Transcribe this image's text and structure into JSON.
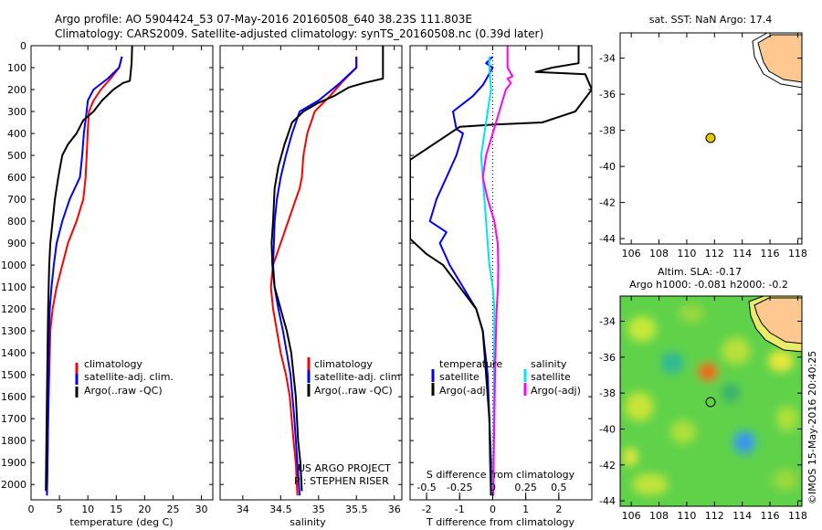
{
  "header": {
    "line1": "Argo profile: AO 5904424_53 07-May-2016 20160508_640 38.23S 111.803E",
    "line2": "Climatology: CARS2009. Satellite-adjusted climatology: synTS_20160508.nc (0.39d later)"
  },
  "watermark": "©IMOS 15-May-2016 20:40:25",
  "colors": {
    "climatology": "#ff0000",
    "satellite": "#0000ff",
    "argo": "#000000",
    "sal_satellite": "#00e5ee",
    "sal_argo": "#ff00ff",
    "land": "#ffc890",
    "float_marker": "#e8c800"
  },
  "chart_data": [
    {
      "type": "line",
      "xlabel": "temperature (deg C)",
      "xlim": [
        0,
        32
      ],
      "xticks": [
        0,
        5,
        10,
        15,
        20,
        25,
        30
      ],
      "ylim": [
        2070,
        0
      ],
      "yticks": [
        0,
        100,
        200,
        300,
        400,
        500,
        600,
        700,
        800,
        900,
        1000,
        1100,
        1200,
        1300,
        1400,
        1500,
        1600,
        1700,
        1800,
        1900,
        2000
      ],
      "legend": [
        "climatology",
        "satellite-adj. clim.",
        "Argo(..raw -QC)"
      ],
      "series": [
        {
          "name": "climatology",
          "color": "#ff0000",
          "points": [
            [
              16,
              50
            ],
            [
              15.5,
              100
            ],
            [
              14,
              150
            ],
            [
              12.3,
              200
            ],
            [
              11,
              250
            ],
            [
              10.2,
              300
            ],
            [
              10,
              380
            ],
            [
              9.8,
              500
            ],
            [
              9.6,
              600
            ],
            [
              9.2,
              700
            ],
            [
              8,
              800
            ],
            [
              6.5,
              900
            ],
            [
              5.5,
              1000
            ],
            [
              4.5,
              1100
            ],
            [
              3.8,
              1200
            ],
            [
              3.4,
              1300
            ],
            [
              3.2,
              1500
            ],
            [
              3,
              1700
            ],
            [
              2.9,
              1900
            ],
            [
              2.8,
              2050
            ]
          ]
        },
        {
          "name": "satellite-adj. clim.",
          "color": "#0000ff",
          "points": [
            [
              16,
              50
            ],
            [
              15.5,
              100
            ],
            [
              13.5,
              150
            ],
            [
              11,
              200
            ],
            [
              10,
              250
            ],
            [
              9.7,
              320
            ],
            [
              9.3,
              400
            ],
            [
              9,
              500
            ],
            [
              8.6,
              600
            ],
            [
              6.8,
              700
            ],
            [
              5.5,
              800
            ],
            [
              4.5,
              900
            ],
            [
              4,
              1000
            ],
            [
              3.6,
              1100
            ],
            [
              3.3,
              1200
            ],
            [
              3.2,
              1300
            ],
            [
              3.1,
              1500
            ],
            [
              3,
              1700
            ],
            [
              2.9,
              1900
            ],
            [
              2.8,
              2050
            ]
          ]
        },
        {
          "name": "Argo(..raw -QC)",
          "color": "#000000",
          "points": [
            [
              17.8,
              0
            ],
            [
              17.7,
              80
            ],
            [
              17.4,
              160
            ],
            [
              16.2,
              170
            ],
            [
              14.5,
              200
            ],
            [
              12.5,
              250
            ],
            [
              11,
              300
            ],
            [
              9.2,
              340
            ],
            [
              8,
              400
            ],
            [
              6.5,
              450
            ],
            [
              5.5,
              500
            ],
            [
              4.8,
              600
            ],
            [
              4.2,
              700
            ],
            [
              3.8,
              800
            ],
            [
              3.4,
              900
            ],
            [
              3.2,
              1000
            ],
            [
              3.1,
              1100
            ],
            [
              3,
              1200
            ],
            [
              2.9,
              1400
            ],
            [
              2.8,
              1600
            ],
            [
              2.7,
              1800
            ],
            [
              2.6,
              2030
            ]
          ]
        }
      ]
    },
    {
      "type": "line",
      "xlabel": "salinity",
      "xlim": [
        33.7,
        36.1
      ],
      "xticks": [
        34,
        34.5,
        35,
        35.5,
        36
      ],
      "ylim": [
        2070,
        0
      ],
      "legend": [
        "climatology",
        "satellite-adj. clim.",
        "Argo(..raw -QC)"
      ],
      "annotations": [
        "US ARGO PROJECT",
        "PI: STEPHEN RISER"
      ],
      "series": [
        {
          "name": "climatology",
          "color": "#ff0000",
          "points": [
            [
              35.5,
              50
            ],
            [
              35.5,
              100
            ],
            [
              35.3,
              170
            ],
            [
              35.15,
              230
            ],
            [
              34.95,
              300
            ],
            [
              34.85,
              400
            ],
            [
              34.8,
              500
            ],
            [
              34.78,
              600
            ],
            [
              34.75,
              650
            ],
            [
              34.7,
              700
            ],
            [
              34.6,
              800
            ],
            [
              34.5,
              900
            ],
            [
              34.4,
              1000
            ],
            [
              34.37,
              1100
            ],
            [
              34.4,
              1200
            ],
            [
              34.45,
              1300
            ],
            [
              34.5,
              1400
            ],
            [
              34.57,
              1500
            ],
            [
              34.62,
              1600
            ],
            [
              34.67,
              1800
            ],
            [
              34.7,
              1900
            ],
            [
              34.72,
              2050
            ]
          ]
        },
        {
          "name": "satellite-adj. clim.",
          "color": "#0000ff",
          "points": [
            [
              35.5,
              50
            ],
            [
              35.5,
              100
            ],
            [
              35.25,
              180
            ],
            [
              35,
              250
            ],
            [
              34.75,
              300
            ],
            [
              34.65,
              400
            ],
            [
              34.57,
              500
            ],
            [
              34.5,
              600
            ],
            [
              34.45,
              700
            ],
            [
              34.42,
              800
            ],
            [
              34.41,
              900
            ],
            [
              34.4,
              1000
            ],
            [
              34.42,
              1100
            ],
            [
              34.47,
              1200
            ],
            [
              34.53,
              1300
            ],
            [
              34.58,
              1400
            ],
            [
              34.63,
              1500
            ],
            [
              34.68,
              1700
            ],
            [
              34.72,
              1900
            ],
            [
              34.75,
              2050
            ]
          ]
        },
        {
          "name": "Argo(..raw -QC)",
          "color": "#000000",
          "points": [
            [
              35.85,
              0
            ],
            [
              35.85,
              150
            ],
            [
              35.6,
              170
            ],
            [
              35.4,
              190
            ],
            [
              35.2,
              230
            ],
            [
              35,
              260
            ],
            [
              34.8,
              300
            ],
            [
              34.65,
              350
            ],
            [
              34.55,
              450
            ],
            [
              34.47,
              550
            ],
            [
              34.42,
              650
            ],
            [
              34.4,
              800
            ],
            [
              34.38,
              900
            ],
            [
              34.39,
              1000
            ],
            [
              34.42,
              1100
            ],
            [
              34.5,
              1200
            ],
            [
              34.58,
              1300
            ],
            [
              34.64,
              1400
            ],
            [
              34.67,
              1500
            ],
            [
              34.7,
              1600
            ],
            [
              34.73,
              1800
            ],
            [
              34.76,
              1900
            ],
            [
              34.78,
              2030
            ]
          ]
        }
      ]
    },
    {
      "type": "line",
      "xlabel": "T difference from climatology",
      "x2label": "S difference from climatology",
      "xlim": [
        -2.5,
        3
      ],
      "xticks": [
        -2,
        -1,
        0,
        1,
        2
      ],
      "x2ticks": [
        -0.5,
        -0.25,
        0,
        0.25,
        0.5
      ],
      "x2tick_labels": [
        "-0.5",
        "-0.25",
        "0",
        "0.25",
        "0.5"
      ],
      "ylim": [
        2070,
        0
      ],
      "legend": [
        "temperature",
        "satellite",
        "Argo(-adj)",
        "salinity",
        "satellite",
        "Argo(-adj)"
      ],
      "series": [
        {
          "name": "satellite",
          "color": "#0000ff",
          "points": [
            [
              0,
              50
            ],
            [
              -0.2,
              80
            ],
            [
              0,
              100
            ],
            [
              -0.3,
              180
            ],
            [
              -0.6,
              230
            ],
            [
              -1.2,
              300
            ],
            [
              -1.1,
              380
            ],
            [
              -0.9,
              400
            ],
            [
              -1.1,
              500
            ],
            [
              -1.4,
              600
            ],
            [
              -1.7,
              700
            ],
            [
              -1.9,
              800
            ],
            [
              -1.4,
              850
            ],
            [
              -1.6,
              900
            ],
            [
              -1.3,
              1000
            ],
            [
              -0.9,
              1100
            ],
            [
              -0.5,
              1200
            ],
            [
              -0.3,
              1300
            ],
            [
              -0.15,
              1500
            ],
            [
              -0.1,
              1700
            ],
            [
              -0.08,
              1900
            ],
            [
              -0.05,
              2050
            ]
          ]
        },
        {
          "name": "Argo(-adj)",
          "color": "#000000",
          "points": [
            [
              2.6,
              0
            ],
            [
              2.6,
              80
            ],
            [
              1.8,
              100
            ],
            [
              1.3,
              120
            ],
            [
              2.8,
              130
            ],
            [
              3,
              200
            ],
            [
              2.5,
              300
            ],
            [
              1.5,
              350
            ],
            [
              0,
              360
            ],
            [
              -1,
              370
            ],
            [
              -2.5,
              520
            ],
            [
              -2.5,
              880
            ],
            [
              -2,
              950
            ],
            [
              -1.5,
              1000
            ],
            [
              -1,
              1100
            ],
            [
              -0.5,
              1200
            ],
            [
              -0.3,
              1300
            ],
            [
              -0.2,
              1500
            ],
            [
              -0.1,
              1700
            ],
            [
              -0.05,
              1900
            ],
            [
              -0.05,
              2050
            ]
          ]
        },
        {
          "name": "satellite",
          "color": "#00e5ee",
          "points": [
            [
              -0.1,
              50
            ],
            [
              -0.1,
              100
            ],
            [
              -0.05,
              200
            ],
            [
              -0.15,
              300
            ],
            [
              -0.25,
              400
            ],
            [
              -0.35,
              500
            ],
            [
              -0.3,
              600
            ],
            [
              -0.25,
              700
            ],
            [
              -0.2,
              800
            ],
            [
              -0.15,
              900
            ],
            [
              -0.1,
              1000
            ],
            [
              0,
              1100
            ],
            [
              0.05,
              1200
            ],
            [
              0.05,
              1300
            ],
            [
              0.04,
              1500
            ],
            [
              0.03,
              1700
            ],
            [
              0.02,
              1900
            ],
            [
              0.01,
              2050
            ]
          ]
        },
        {
          "name": "Argo(-adj)",
          "color": "#ff00ff",
          "points": [
            [
              0.45,
              0
            ],
            [
              0.45,
              100
            ],
            [
              0.6,
              140
            ],
            [
              0.45,
              150
            ],
            [
              0.55,
              170
            ],
            [
              0.4,
              200
            ],
            [
              0.2,
              300
            ],
            [
              0,
              400
            ],
            [
              -0.2,
              500
            ],
            [
              -0.3,
              600
            ],
            [
              -0.15,
              700
            ],
            [
              0.05,
              800
            ],
            [
              0.15,
              900
            ],
            [
              0.17,
              1000
            ],
            [
              0.16,
              1100
            ],
            [
              0.12,
              1200
            ],
            [
              0.1,
              1300
            ],
            [
              0.07,
              1500
            ],
            [
              0.05,
              1700
            ],
            [
              0.03,
              1900
            ],
            [
              0.02,
              2050
            ]
          ]
        }
      ]
    },
    {
      "type": "scatter",
      "title": "sat. SST: NaN Argo: 17.4",
      "xlim": [
        105.2,
        118.3
      ],
      "ylim": [
        -44.3,
        -32.6
      ],
      "xticks": [
        106,
        108,
        110,
        112,
        114,
        116,
        118
      ],
      "yticks": [
        -34,
        -36,
        -38,
        -40,
        -42,
        -44
      ],
      "points": [
        {
          "x": 111.8,
          "y": -38.23
        }
      ]
    },
    {
      "type": "heatmap",
      "title": "Altim. SLA: -0.17",
      "subtitle": "Argo h1000: -0.081 h2000: -0.2",
      "xlim": [
        105.2,
        118.3
      ],
      "ylim": [
        -44.3,
        -32.6
      ],
      "xticks": [
        106,
        108,
        110,
        112,
        114,
        116,
        118
      ],
      "yticks": [
        -34,
        -36,
        -38,
        -40,
        -42,
        -44
      ],
      "points": [
        {
          "x": 111.8,
          "y": -38.23
        }
      ]
    }
  ]
}
